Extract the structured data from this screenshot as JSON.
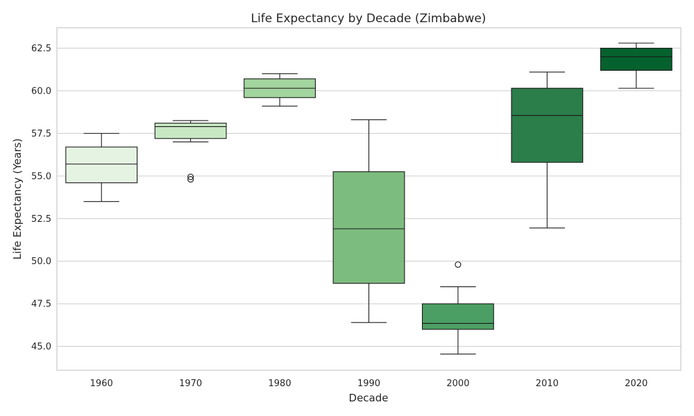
{
  "chart_data": {
    "type": "box",
    "title": "Life Expectancy by Decade (Zimbabwe)",
    "xlabel": "Decade",
    "ylabel": "Life Expectancy (Years)",
    "ylim": [
      43.6,
      63.7
    ],
    "yticks": [
      "45.0",
      "47.5",
      "50.0",
      "52.5",
      "55.0",
      "57.5",
      "60.0",
      "62.5"
    ],
    "grid": "horizontal",
    "categories": [
      "1960",
      "1970",
      "1980",
      "1990",
      "2000",
      "2010",
      "2020"
    ],
    "boxes": [
      {
        "category": "1960",
        "whisker_low": 53.5,
        "q1": 54.6,
        "median": 55.7,
        "q3": 56.7,
        "whisker_high": 57.5,
        "outliers": [],
        "color": "#e5f4e2"
      },
      {
        "category": "1970",
        "whisker_low": 57.0,
        "q1": 57.2,
        "median": 57.9,
        "q3": 58.1,
        "whisker_high": 58.25,
        "outliers": [
          54.8,
          54.95
        ],
        "color": "#c8e8c3"
      },
      {
        "category": "1980",
        "whisker_low": 59.1,
        "q1": 59.6,
        "median": 60.15,
        "q3": 60.7,
        "whisker_high": 61.0,
        "outliers": [],
        "color": "#a2d49e"
      },
      {
        "category": "1990",
        "whisker_low": 46.4,
        "q1": 48.7,
        "median": 51.9,
        "q3": 55.25,
        "whisker_high": 58.3,
        "outliers": [],
        "color": "#7dbc7f"
      },
      {
        "category": "2000",
        "whisker_low": 44.55,
        "q1": 46.0,
        "median": 46.35,
        "q3": 47.5,
        "whisker_high": 48.5,
        "outliers": [
          49.8
        ],
        "color": "#4c9f64"
      },
      {
        "category": "2010",
        "whisker_low": 51.95,
        "q1": 55.8,
        "median": 58.55,
        "q3": 60.15,
        "whisker_high": 61.1,
        "outliers": [],
        "color": "#2b7d49"
      },
      {
        "category": "2020",
        "whisker_low": 60.15,
        "q1": 61.2,
        "median": 62.0,
        "q3": 62.5,
        "whisker_high": 62.8,
        "outliers": [],
        "color": "#05622e"
      }
    ]
  }
}
